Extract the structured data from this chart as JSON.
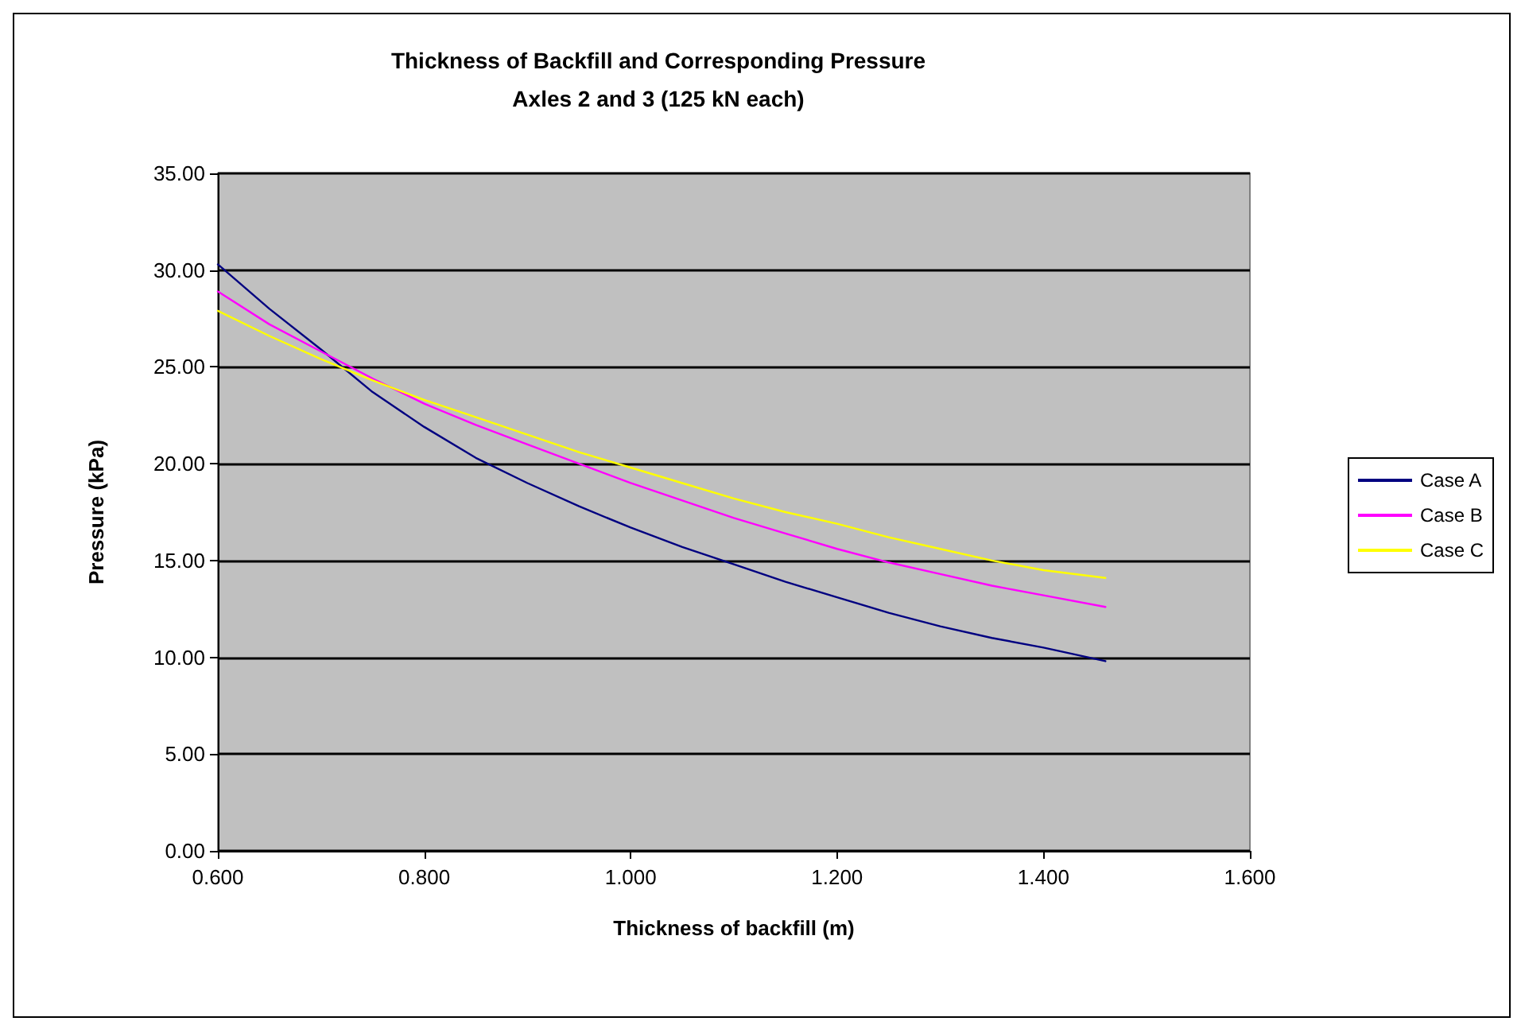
{
  "chart_data": {
    "type": "line",
    "title": "Thickness of Backfill and Corresponding Pressure\nAxles 2 and 3 (125 kN each)",
    "xlabel": "Thickness of backfill (m)",
    "ylabel": "Pressure (kPa)",
    "x": [
      0.6,
      0.65,
      0.7,
      0.75,
      0.8,
      0.85,
      0.9,
      0.95,
      1.0,
      1.05,
      1.1,
      1.15,
      1.2,
      1.25,
      1.3,
      1.35,
      1.4,
      1.46
    ],
    "series": [
      {
        "name": "Case A",
        "color": "#000080",
        "values": [
          30.3,
          28.0,
          25.9,
          23.7,
          21.9,
          20.3,
          19.0,
          17.8,
          16.7,
          15.7,
          14.8,
          13.9,
          13.1,
          12.3,
          11.6,
          11.0,
          10.5,
          9.8
        ]
      },
      {
        "name": "Case B",
        "color": "#ff00ff",
        "values": [
          28.9,
          27.2,
          25.8,
          24.4,
          23.1,
          22.0,
          21.0,
          20.0,
          19.0,
          18.1,
          17.2,
          16.4,
          15.6,
          14.9,
          14.3,
          13.7,
          13.2,
          12.6
        ]
      },
      {
        "name": "Case C",
        "color": "#ffff00",
        "values": [
          27.9,
          26.6,
          25.4,
          24.3,
          23.3,
          22.4,
          21.5,
          20.6,
          19.8,
          19.0,
          18.2,
          17.5,
          16.9,
          16.2,
          15.6,
          15.0,
          14.5,
          14.1
        ]
      }
    ],
    "xlim": [
      0.6,
      1.6
    ],
    "xticks": [
      {
        "value": 0.6,
        "label": "0.600"
      },
      {
        "value": 0.8,
        "label": "0.800"
      },
      {
        "value": 1.0,
        "label": "1.000"
      },
      {
        "value": 1.2,
        "label": "1.200"
      },
      {
        "value": 1.4,
        "label": "1.400"
      },
      {
        "value": 1.6,
        "label": "1.600"
      }
    ],
    "ylim": [
      0,
      35
    ],
    "yticks": [
      {
        "value": 0,
        "label": "0.00"
      },
      {
        "value": 5,
        "label": "5.00"
      },
      {
        "value": 10,
        "label": "10.00"
      },
      {
        "value": 15,
        "label": "15.00"
      },
      {
        "value": 20,
        "label": "20.00"
      },
      {
        "value": 25,
        "label": "25.00"
      },
      {
        "value": 30,
        "label": "30.00"
      },
      {
        "value": 35,
        "label": "35.00"
      }
    ],
    "grid": "y",
    "legend": "right",
    "marker": "none",
    "line_style": "solid"
  }
}
